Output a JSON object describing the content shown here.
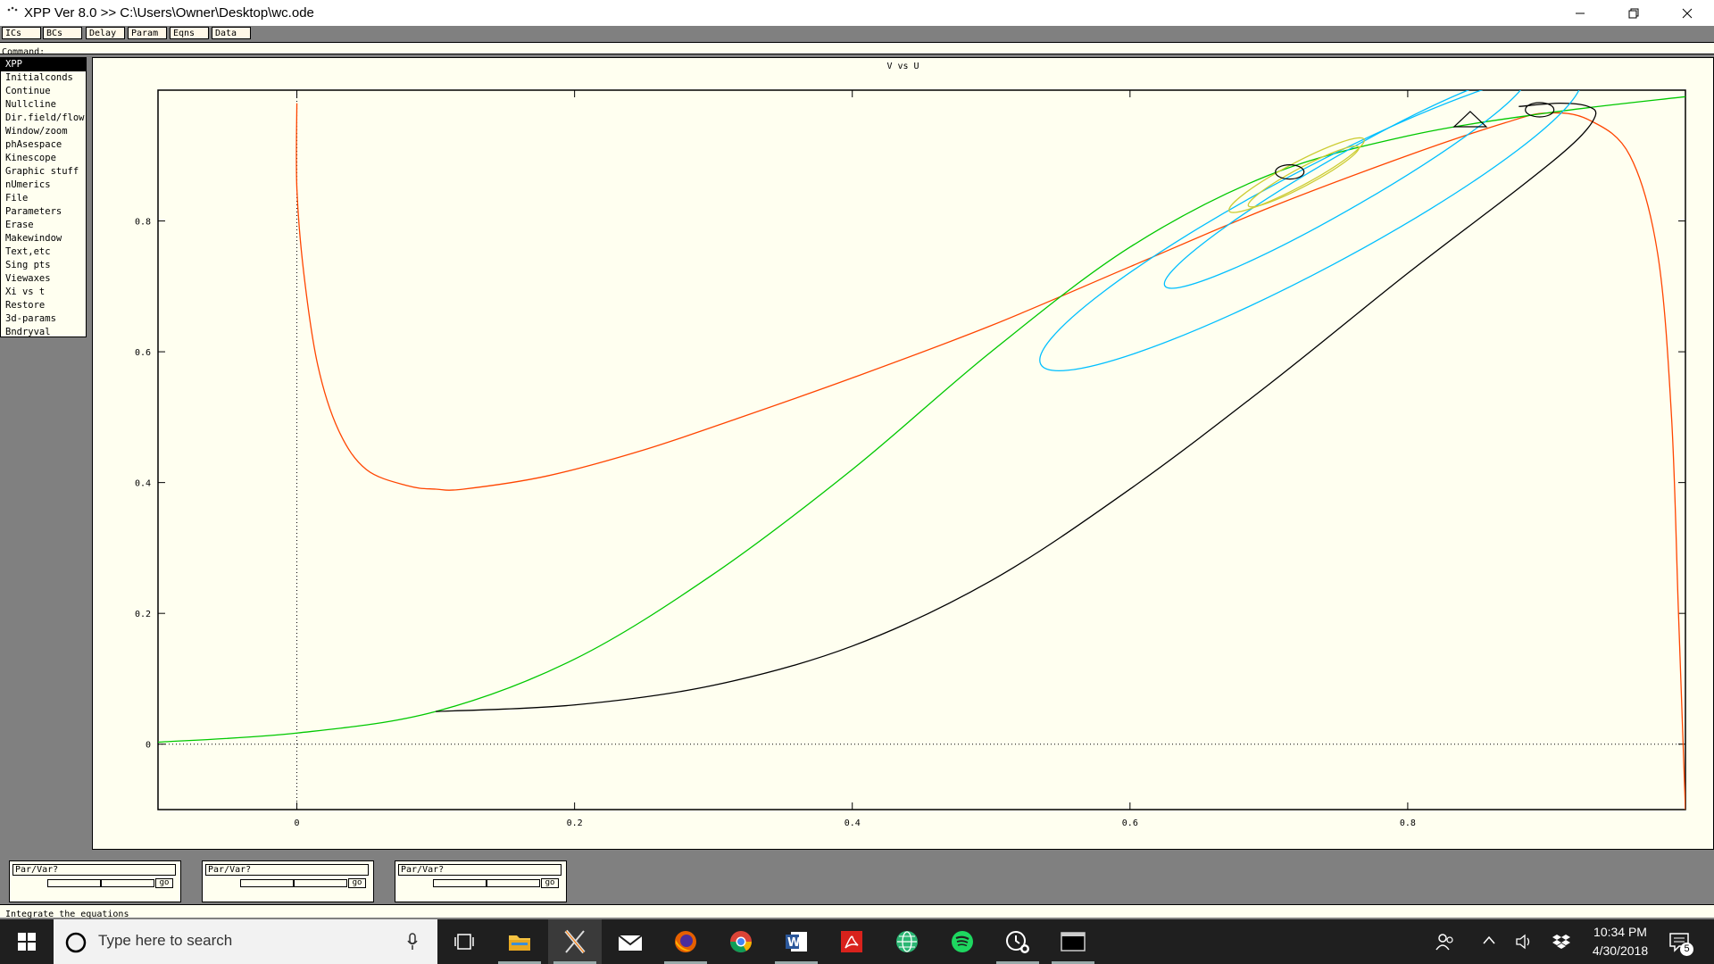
{
  "window": {
    "title": "XPP Ver 8.0 >> C:\\Users\\Owner\\Desktop\\wc.ode"
  },
  "toolbar": {
    "buttons": [
      "ICs",
      "BCs",
      "Delay",
      "Param",
      "Eqns",
      "Data"
    ]
  },
  "command": {
    "label": "Command:"
  },
  "menu": {
    "items": [
      "XPP",
      "Initialconds",
      "Continue",
      "Nullcline",
      "Dir.field/flow",
      "Window/zoom",
      "phAsespace",
      "Kinescope",
      "Graphic stuff",
      "nUmerics",
      "File",
      "Parameters",
      "Erase",
      "Makewindow",
      "Text,etc",
      "Sing pts",
      "Viewaxes",
      "Xi vs t",
      "Restore",
      "3d-params",
      "Bndryval"
    ]
  },
  "plot": {
    "title": "V vs U"
  },
  "chart_data": {
    "type": "line",
    "title": "V vs U",
    "xlim": [
      -0.1,
      1.0
    ],
    "ylim": [
      -0.1,
      1.0
    ],
    "x_ticks": [
      0,
      0.2,
      0.4,
      0.6,
      0.8
    ],
    "y_ticks": [
      0,
      0.2,
      0.4,
      0.6,
      0.8
    ],
    "x_tick_labels": [
      "0",
      "0.2",
      "0.4",
      "0.6",
      "0.8"
    ],
    "y_tick_labels": [
      "0",
      "0.2",
      "0.4",
      "0.6",
      "0.8"
    ],
    "grid": false,
    "series": [
      {
        "color": "#ff4500",
        "points": [
          [
            0.0,
            0.98
          ],
          [
            0.0,
            0.85
          ],
          [
            0.005,
            0.72
          ],
          [
            0.015,
            0.58
          ],
          [
            0.03,
            0.48
          ],
          [
            0.05,
            0.42
          ],
          [
            0.08,
            0.395
          ],
          [
            0.1,
            0.39
          ],
          [
            0.12,
            0.39
          ],
          [
            0.18,
            0.41
          ],
          [
            0.25,
            0.45
          ],
          [
            0.32,
            0.5
          ],
          [
            0.4,
            0.56
          ],
          [
            0.5,
            0.64
          ],
          [
            0.6,
            0.73
          ],
          [
            0.7,
            0.82
          ],
          [
            0.8,
            0.9
          ],
          [
            0.87,
            0.95
          ],
          [
            0.9,
            0.965
          ],
          [
            0.93,
            0.955
          ],
          [
            0.96,
            0.9
          ],
          [
            0.98,
            0.75
          ],
          [
            0.99,
            0.5
          ],
          [
            0.995,
            0.2
          ],
          [
            1.0,
            -0.1
          ]
        ]
      },
      {
        "color": "#00c800",
        "points": [
          [
            -0.1,
            0.003
          ],
          [
            0.0,
            0.017
          ],
          [
            0.1,
            0.05
          ],
          [
            0.2,
            0.13
          ],
          [
            0.3,
            0.26
          ],
          [
            0.4,
            0.42
          ],
          [
            0.5,
            0.6
          ],
          [
            0.6,
            0.76
          ],
          [
            0.7,
            0.87
          ],
          [
            0.8,
            0.93
          ],
          [
            0.9,
            0.965
          ],
          [
            1.0,
            0.99
          ]
        ]
      },
      {
        "color": "#000000",
        "points": [
          [
            0.1,
            0.05
          ],
          [
            0.2,
            0.06
          ],
          [
            0.3,
            0.09
          ],
          [
            0.4,
            0.15
          ],
          [
            0.5,
            0.25
          ],
          [
            0.6,
            0.39
          ],
          [
            0.7,
            0.55
          ],
          [
            0.8,
            0.72
          ],
          [
            0.88,
            0.85
          ],
          [
            0.92,
            0.92
          ],
          [
            0.935,
            0.96
          ],
          [
            0.93,
            0.975
          ],
          [
            0.91,
            0.98
          ],
          [
            0.88,
            0.975
          ]
        ]
      },
      {
        "color": "#00bfff",
        "type": "closed-orbit",
        "center": [
          0.72,
          0.83
        ],
        "description_only": false,
        "ellipses": [
          {
            "cx": 0.73,
            "cy": 0.8,
            "rx": 0.22,
            "ry": 0.075,
            "angle_deg": -28
          },
          {
            "cx": 0.755,
            "cy": 0.86,
            "rx": 0.15,
            "ry": 0.04,
            "angle_deg": -30
          }
        ]
      },
      {
        "color": "#cccc33",
        "type": "closed-orbit",
        "ellipses": [
          {
            "cx": 0.72,
            "cy": 0.87,
            "rx": 0.055,
            "ry": 0.018,
            "angle_deg": -28
          },
          {
            "cx": 0.725,
            "cy": 0.868,
            "rx": 0.045,
            "ry": 0.014,
            "angle_deg": -28
          }
        ]
      }
    ],
    "fixed_points": [
      {
        "type": "ellipse",
        "x": 0.715,
        "y": 0.875
      },
      {
        "type": "ellipse",
        "x": 0.895,
        "y": 0.97
      },
      {
        "type": "triangle",
        "x": 0.845,
        "y": 0.955
      }
    ]
  },
  "sliders": [
    {
      "label": "Par/Var?",
      "go": "go"
    },
    {
      "label": "Par/Var?",
      "go": "go"
    },
    {
      "label": "Par/Var?",
      "go": "go"
    }
  ],
  "status": {
    "text": "Integrate the equations"
  },
  "taskbar": {
    "search_placeholder": "Type here to search",
    "time": "10:34 PM",
    "date": "4/30/2018",
    "notification_count": "5"
  }
}
